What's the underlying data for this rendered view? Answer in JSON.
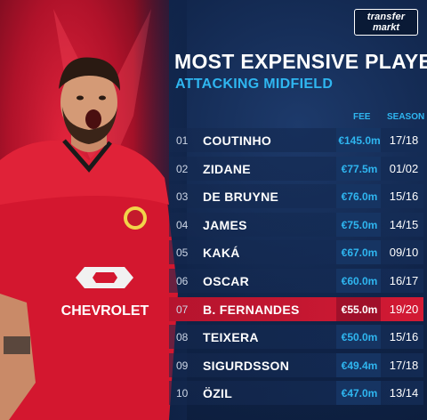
{
  "logo": {
    "line1": "transfer",
    "line2": "markt"
  },
  "title": "MOST EXPENSIVE PLAYERS",
  "subtitle": "ATTACKING MIDFIELD",
  "columns": {
    "fee": "FEE",
    "season": "SEASON"
  },
  "shirt_sponsor": "CHEVROLET",
  "colors": {
    "accent_blue": "#2fb6f0",
    "highlight_red": "#c8162f",
    "background": "#102449"
  },
  "players": [
    {
      "rank": "01",
      "name": "COUTINHO",
      "fee": "€145.0m",
      "season": "17/18",
      "highlighted": false
    },
    {
      "rank": "02",
      "name": "ZIDANE",
      "fee": "€77.5m",
      "season": "01/02",
      "highlighted": false
    },
    {
      "rank": "03",
      "name": "DE BRUYNE",
      "fee": "€76.0m",
      "season": "15/16",
      "highlighted": false
    },
    {
      "rank": "04",
      "name": "JAMES",
      "fee": "€75.0m",
      "season": "14/15",
      "highlighted": false
    },
    {
      "rank": "05",
      "name": "KAKÁ",
      "fee": "€67.0m",
      "season": "09/10",
      "highlighted": false
    },
    {
      "rank": "06",
      "name": "OSCAR",
      "fee": "€60.0m",
      "season": "16/17",
      "highlighted": false
    },
    {
      "rank": "07",
      "name": "B. FERNANDES",
      "fee": "€55.0m",
      "season": "19/20",
      "highlighted": true
    },
    {
      "rank": "08",
      "name": "TEIXERA",
      "fee": "€50.0m",
      "season": "15/16",
      "highlighted": false
    },
    {
      "rank": "09",
      "name": "SIGURDSSON",
      "fee": "€49.4m",
      "season": "17/18",
      "highlighted": false
    },
    {
      "rank": "10",
      "name": "ÖZIL",
      "fee": "€47.0m",
      "season": "13/14",
      "highlighted": false
    }
  ]
}
